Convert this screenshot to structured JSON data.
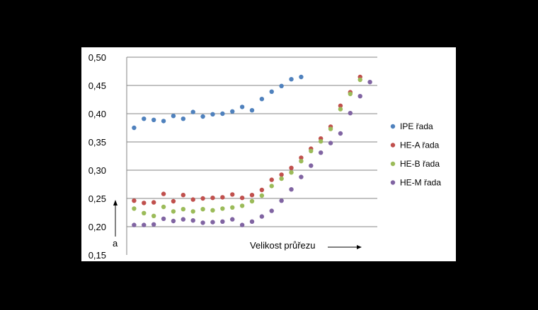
{
  "chart_data": {
    "type": "scatter",
    "title": "",
    "xlabel": "Velikost průřezu",
    "ylabel": "a",
    "ylim": [
      0.15,
      0.5
    ],
    "yticks": [
      "0,15",
      "0,20",
      "0,25",
      "0,30",
      "0,35",
      "0,40",
      "0,45",
      "0,50"
    ],
    "grid": true,
    "legend_position": "right",
    "series": [
      {
        "name": "IPE řada",
        "color": "#4F81BD",
        "x": [
          1,
          2,
          3,
          4,
          5,
          6,
          7,
          8,
          9,
          10,
          11,
          12,
          13,
          14,
          15,
          16,
          17,
          18
        ],
        "values": [
          0.375,
          0.391,
          0.389,
          0.387,
          0.396,
          0.391,
          0.403,
          0.395,
          0.399,
          0.4,
          0.404,
          0.412,
          0.406,
          0.426,
          0.439,
          0.449,
          0.461,
          0.465
        ]
      },
      {
        "name": "HE-A řada",
        "color": "#C0504D",
        "x": [
          1,
          2,
          3,
          4,
          5,
          6,
          7,
          8,
          9,
          10,
          11,
          12,
          13,
          14,
          15,
          16,
          17,
          18,
          19,
          20,
          21,
          22,
          23,
          24,
          25
        ],
        "values": [
          0.246,
          0.242,
          0.243,
          0.258,
          0.245,
          0.256,
          0.248,
          0.25,
          0.251,
          0.252,
          0.257,
          0.251,
          0.256,
          0.265,
          0.283,
          0.292,
          0.304,
          0.322,
          0.338,
          0.356,
          0.377,
          0.414,
          0.438,
          0.465,
          null
        ]
      },
      {
        "name": "HE-B řada",
        "color": "#9BBB59",
        "x": [
          1,
          2,
          3,
          4,
          5,
          6,
          7,
          8,
          9,
          10,
          11,
          12,
          13,
          14,
          15,
          16,
          17,
          18,
          19,
          20,
          21,
          22,
          23,
          24,
          25
        ],
        "values": [
          0.232,
          0.224,
          0.219,
          0.235,
          0.227,
          0.231,
          0.227,
          0.231,
          0.229,
          0.232,
          0.234,
          0.237,
          0.245,
          0.255,
          0.272,
          0.285,
          0.296,
          0.316,
          0.334,
          0.351,
          0.373,
          0.408,
          0.435,
          0.46,
          null
        ]
      },
      {
        "name": "HE-M řada",
        "color": "#8064A2",
        "x": [
          1,
          2,
          3,
          4,
          5,
          6,
          7,
          8,
          9,
          10,
          11,
          12,
          13,
          14,
          15,
          16,
          17,
          18,
          19,
          20,
          21,
          22,
          23,
          24,
          25
        ],
        "values": [
          0.203,
          0.203,
          0.204,
          0.214,
          0.21,
          0.213,
          0.211,
          0.207,
          0.208,
          0.209,
          0.213,
          0.203,
          0.209,
          0.218,
          0.228,
          0.246,
          0.266,
          0.288,
          0.308,
          0.331,
          0.348,
          0.365,
          0.401,
          0.431,
          0.456
        ]
      }
    ]
  }
}
